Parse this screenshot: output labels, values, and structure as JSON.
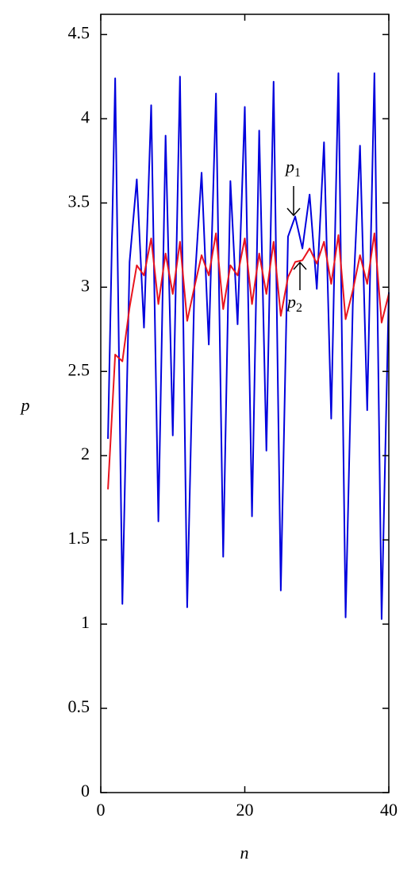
{
  "chart_data": {
    "type": "line",
    "x_label": "n",
    "y_label": "p",
    "x": [
      1,
      2,
      3,
      4,
      5,
      6,
      7,
      8,
      9,
      10,
      11,
      12,
      13,
      14,
      15,
      16,
      17,
      18,
      19,
      20,
      21,
      22,
      23,
      24,
      25,
      26,
      27,
      28,
      29,
      30,
      31,
      32,
      33,
      34,
      35,
      36,
      37,
      38,
      39,
      40
    ],
    "series": [
      {
        "color": "#0000dd",
        "values": [
          2.1,
          4.24,
          1.12,
          3.15,
          3.64,
          2.76,
          4.08,
          1.61,
          3.9,
          2.12,
          4.25,
          1.1,
          3.0,
          3.68,
          2.66,
          4.15,
          1.4,
          3.63,
          2.78,
          4.07,
          1.64,
          3.93,
          2.03,
          4.22,
          1.2,
          3.3,
          3.42,
          3.23,
          3.55,
          2.99,
          3.86,
          2.22,
          4.27,
          1.04,
          2.9,
          3.84,
          2.27,
          4.27,
          1.03,
          2.97
        ]
      },
      {
        "color": "#e8141e",
        "values": [
          1.8,
          2.6,
          2.56,
          2.88,
          3.13,
          3.07,
          3.29,
          2.9,
          3.2,
          2.96,
          3.27,
          2.8,
          3.0,
          3.19,
          3.07,
          3.32,
          2.87,
          3.13,
          3.07,
          3.29,
          2.9,
          3.2,
          2.96,
          3.27,
          2.83,
          3.06,
          3.15,
          3.16,
          3.23,
          3.14,
          3.27,
          3.02,
          3.31,
          2.81,
          2.98,
          3.19,
          3.02,
          3.32,
          2.79,
          2.96
        ]
      }
    ],
    "annotations": [
      {
        "label": "p",
        "subscript": "1"
      },
      {
        "label": "p",
        "subscript": "2"
      }
    ],
    "xlim": [
      0,
      40
    ],
    "xticks": [
      0,
      20,
      40
    ],
    "ylim": [
      0,
      4.62
    ],
    "yticks": [
      0,
      0.5,
      1,
      1.5,
      2,
      2.5,
      3,
      3.5,
      4,
      4.5
    ],
    "grid": false
  }
}
